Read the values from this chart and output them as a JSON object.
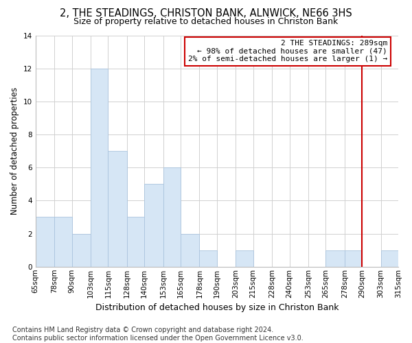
{
  "title": "2, THE STEADINGS, CHRISTON BANK, ALNWICK, NE66 3HS",
  "subtitle": "Size of property relative to detached houses in Christon Bank",
  "xlabel": "Distribution of detached houses by size in Christon Bank",
  "ylabel": "Number of detached properties",
  "bar_color": "#d6e6f5",
  "bar_edgecolor": "#aac4de",
  "grid_color": "#d0d0d0",
  "vline_color": "#cc0000",
  "vline_x": 290,
  "bins": [
    65,
    78,
    90,
    103,
    115,
    128,
    140,
    153,
    165,
    178,
    190,
    203,
    215,
    228,
    240,
    253,
    265,
    278,
    290,
    303,
    315
  ],
  "bin_labels": [
    "65sqm",
    "78sqm",
    "90sqm",
    "103sqm",
    "115sqm",
    "128sqm",
    "140sqm",
    "153sqm",
    "165sqm",
    "178sqm",
    "190sqm",
    "203sqm",
    "215sqm",
    "228sqm",
    "240sqm",
    "253sqm",
    "265sqm",
    "278sqm",
    "290sqm",
    "303sqm",
    "315sqm"
  ],
  "counts": [
    3,
    3,
    2,
    12,
    7,
    3,
    5,
    6,
    2,
    1,
    0,
    1,
    0,
    0,
    0,
    0,
    1,
    1,
    0,
    1
  ],
  "ylim": [
    0,
    14
  ],
  "yticks": [
    0,
    2,
    4,
    6,
    8,
    10,
    12,
    14
  ],
  "annotation_title": "2 THE STEADINGS: 289sqm",
  "annotation_line1": "← 98% of detached houses are smaller (47)",
  "annotation_line2": "2% of semi-detached houses are larger (1) →",
  "annotation_box_color": "#ffffff",
  "annotation_box_edgecolor": "#cc0000",
  "footer_line1": "Contains HM Land Registry data © Crown copyright and database right 2024.",
  "footer_line2": "Contains public sector information licensed under the Open Government Licence v3.0.",
  "background_color": "#ffffff",
  "title_fontsize": 10.5,
  "subtitle_fontsize": 9,
  "xlabel_fontsize": 9,
  "ylabel_fontsize": 8.5,
  "footer_fontsize": 7,
  "tick_fontsize": 7.5,
  "annotation_fontsize": 8
}
